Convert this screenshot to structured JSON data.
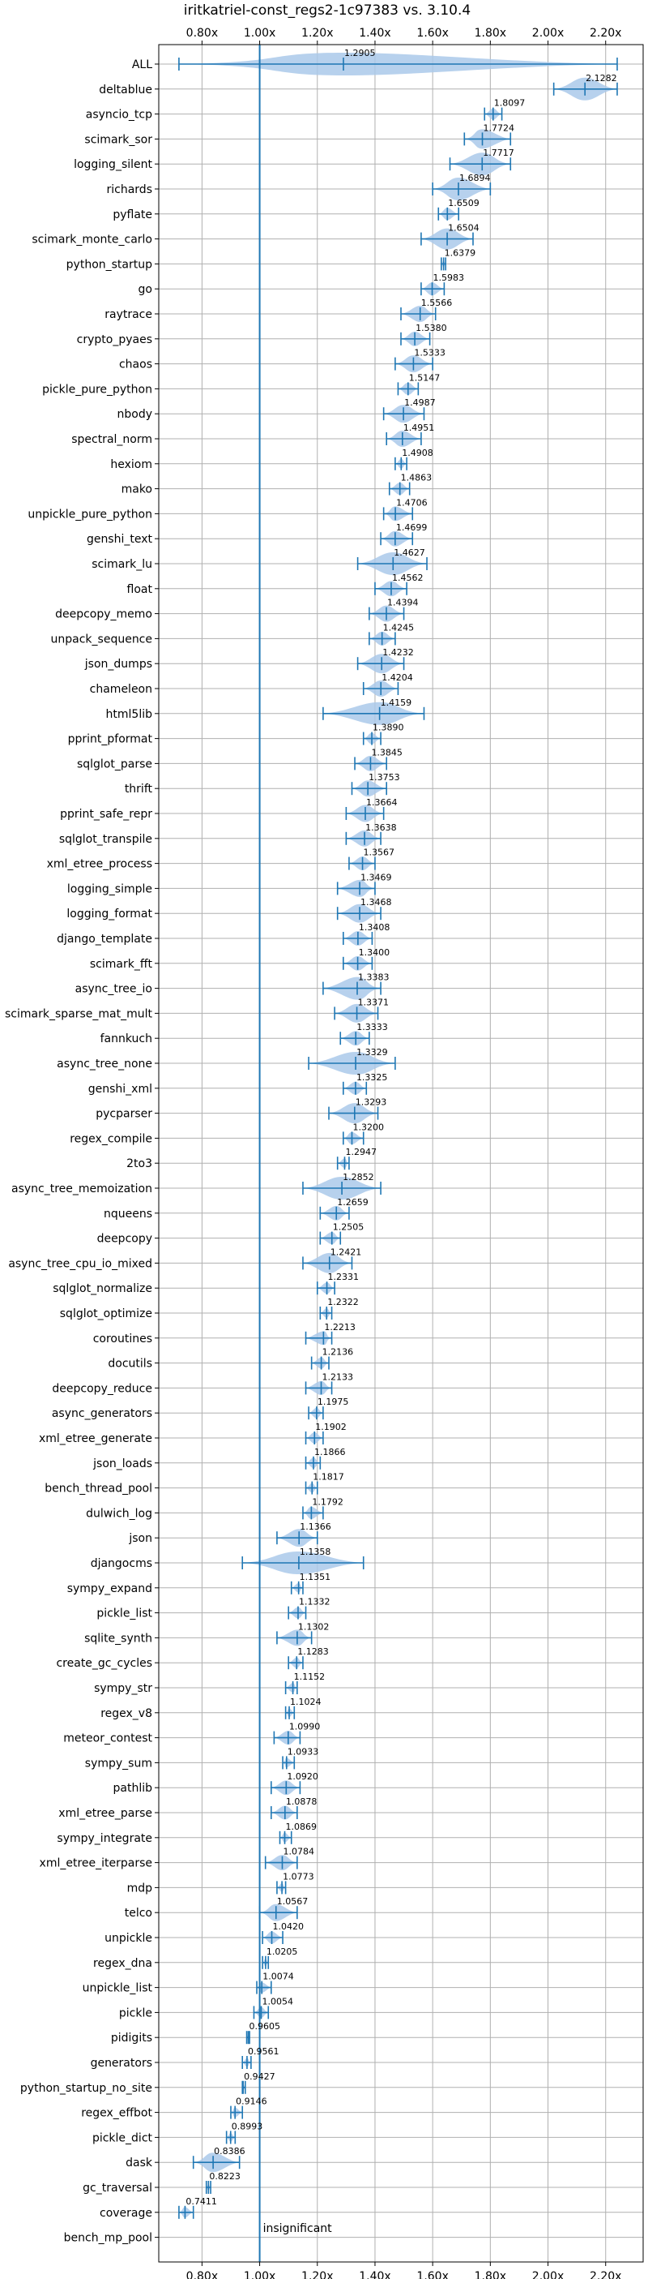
{
  "chart_data": {
    "type": "violin",
    "title": "iritkatriel-const_regs2-1c97383 vs. 3.10.4",
    "xlabel": "",
    "ylabel": "",
    "xlim": [
      0.65,
      2.33
    ],
    "x_ticks": [
      0.8,
      1.0,
      1.2,
      1.4,
      1.6,
      1.8,
      2.0,
      2.2
    ],
    "x_tick_labels": [
      "0.80x",
      "1.00x",
      "1.20x",
      "1.40x",
      "1.60x",
      "1.80x",
      "2.00x",
      "2.20x"
    ],
    "reference_line": 1.0,
    "grid": true,
    "annotation": "insignificant",
    "colors": {
      "violin": "#aac9ea",
      "line": "#1f77b4",
      "grid": "#b0b0b0"
    },
    "categories": [
      "ALL",
      "deltablue",
      "asyncio_tcp",
      "scimark_sor",
      "logging_silent",
      "richards",
      "pyflate",
      "scimark_monte_carlo",
      "python_startup",
      "go",
      "raytrace",
      "crypto_pyaes",
      "chaos",
      "pickle_pure_python",
      "nbody",
      "spectral_norm",
      "hexiom",
      "mako",
      "unpickle_pure_python",
      "genshi_text",
      "scimark_lu",
      "float",
      "deepcopy_memo",
      "unpack_sequence",
      "json_dumps",
      "chameleon",
      "html5lib",
      "pprint_pformat",
      "sqlglot_parse",
      "thrift",
      "pprint_safe_repr",
      "sqlglot_transpile",
      "xml_etree_process",
      "logging_simple",
      "logging_format",
      "django_template",
      "scimark_fft",
      "async_tree_io",
      "scimark_sparse_mat_mult",
      "fannkuch",
      "async_tree_none",
      "genshi_xml",
      "pycparser",
      "regex_compile",
      "2to3",
      "async_tree_memoization",
      "nqueens",
      "deepcopy",
      "async_tree_cpu_io_mixed",
      "sqlglot_normalize",
      "sqlglot_optimize",
      "coroutines",
      "docutils",
      "deepcopy_reduce",
      "async_generators",
      "xml_etree_generate",
      "json_loads",
      "bench_thread_pool",
      "dulwich_log",
      "json",
      "djangocms",
      "sympy_expand",
      "pickle_list",
      "sqlite_synth",
      "create_gc_cycles",
      "sympy_str",
      "regex_v8",
      "meteor_contest",
      "sympy_sum",
      "pathlib",
      "xml_etree_parse",
      "sympy_integrate",
      "xml_etree_iterparse",
      "mdp",
      "telco",
      "unpickle",
      "regex_dna",
      "unpickle_list",
      "pickle",
      "pidigits",
      "generators",
      "python_startup_no_site",
      "regex_effbot",
      "pickle_dict",
      "dask",
      "gc_traversal",
      "coverage",
      "bench_mp_pool"
    ],
    "values": [
      1.2905,
      2.1282,
      1.8097,
      1.7724,
      1.7717,
      1.6894,
      1.6509,
      1.6504,
      1.6379,
      1.5983,
      1.5566,
      1.538,
      1.5333,
      1.5147,
      1.4987,
      1.4951,
      1.4908,
      1.4863,
      1.4706,
      1.4699,
      1.4627,
      1.4562,
      1.4394,
      1.4245,
      1.4232,
      1.4204,
      1.4159,
      1.389,
      1.3845,
      1.3753,
      1.3664,
      1.3638,
      1.3567,
      1.3469,
      1.3468,
      1.3408,
      1.34,
      1.3383,
      1.3371,
      1.3333,
      1.3329,
      1.3325,
      1.3293,
      1.32,
      1.2947,
      1.2852,
      1.2659,
      1.2505,
      1.2421,
      1.2331,
      1.2322,
      1.2213,
      1.2136,
      1.2133,
      1.1975,
      1.1902,
      1.1866,
      1.1817,
      1.1792,
      1.1366,
      1.1358,
      1.1351,
      1.1332,
      1.1302,
      1.1283,
      1.1152,
      1.1024,
      1.099,
      1.0933,
      1.092,
      1.0878,
      1.0869,
      1.0784,
      1.0773,
      1.0567,
      1.042,
      1.0205,
      1.0074,
      1.0054,
      0.9605,
      0.9561,
      0.9427,
      0.9146,
      0.8993,
      0.8386,
      0.8223,
      0.7411,
      null
    ],
    "value_labels": [
      "1.2905",
      "2.1282",
      "1.8097",
      "1.7724",
      "1.7717",
      "1.6894",
      "1.6509",
      "1.6504",
      "1.6379",
      "1.5983",
      "1.5566",
      "1.5380",
      "1.5333",
      "1.5147",
      "1.4987",
      "1.4951",
      "1.4908",
      "1.4863",
      "1.4706",
      "1.4699",
      "1.4627",
      "1.4562",
      "1.4394",
      "1.4245",
      "1.4232",
      "1.4204",
      "1.4159",
      "1.3890",
      "1.3845",
      "1.3753",
      "1.3664",
      "1.3638",
      "1.3567",
      "1.3469",
      "1.3468",
      "1.3408",
      "1.3400",
      "1.3383",
      "1.3371",
      "1.3333",
      "1.3329",
      "1.3325",
      "1.3293",
      "1.3200",
      "1.2947",
      "1.2852",
      "1.2659",
      "1.2505",
      "1.2421",
      "1.2331",
      "1.2322",
      "1.2213",
      "1.2136",
      "1.2133",
      "1.1975",
      "1.1902",
      "1.1866",
      "1.1817",
      "1.1792",
      "1.1366",
      "1.1358",
      "1.1351",
      "1.1332",
      "1.1302",
      "1.1283",
      "1.1152",
      "1.1024",
      "1.0990",
      "1.0933",
      "1.0920",
      "1.0878",
      "1.0869",
      "1.0784",
      "1.0773",
      "1.0567",
      "1.0420",
      "1.0205",
      "1.0074",
      "1.0054",
      "0.9605",
      "0.9561",
      "0.9427",
      "0.9146",
      "0.8993",
      "0.8386",
      "0.8223",
      "0.7411",
      ""
    ],
    "ranges": [
      [
        0.72,
        2.24
      ],
      [
        2.02,
        2.24
      ],
      [
        1.78,
        1.84
      ],
      [
        1.71,
        1.87
      ],
      [
        1.66,
        1.87
      ],
      [
        1.6,
        1.8
      ],
      [
        1.62,
        1.69
      ],
      [
        1.56,
        1.74
      ],
      [
        1.63,
        1.645
      ],
      [
        1.56,
        1.64
      ],
      [
        1.49,
        1.61
      ],
      [
        1.49,
        1.59
      ],
      [
        1.47,
        1.6
      ],
      [
        1.48,
        1.55
      ],
      [
        1.43,
        1.57
      ],
      [
        1.44,
        1.56
      ],
      [
        1.47,
        1.51
      ],
      [
        1.45,
        1.52
      ],
      [
        1.43,
        1.53
      ],
      [
        1.42,
        1.53
      ],
      [
        1.34,
        1.58
      ],
      [
        1.4,
        1.51
      ],
      [
        1.38,
        1.5
      ],
      [
        1.38,
        1.47
      ],
      [
        1.34,
        1.5
      ],
      [
        1.36,
        1.48
      ],
      [
        1.22,
        1.57
      ],
      [
        1.36,
        1.42
      ],
      [
        1.33,
        1.44
      ],
      [
        1.32,
        1.44
      ],
      [
        1.3,
        1.43
      ],
      [
        1.3,
        1.42
      ],
      [
        1.31,
        1.4
      ],
      [
        1.27,
        1.4
      ],
      [
        1.27,
        1.42
      ],
      [
        1.29,
        1.39
      ],
      [
        1.29,
        1.39
      ],
      [
        1.22,
        1.42
      ],
      [
        1.26,
        1.41
      ],
      [
        1.28,
        1.38
      ],
      [
        1.17,
        1.47
      ],
      [
        1.29,
        1.37
      ],
      [
        1.24,
        1.41
      ],
      [
        1.29,
        1.36
      ],
      [
        1.27,
        1.31
      ],
      [
        1.15,
        1.42
      ],
      [
        1.21,
        1.31
      ],
      [
        1.21,
        1.28
      ],
      [
        1.15,
        1.32
      ],
      [
        1.2,
        1.26
      ],
      [
        1.21,
        1.25
      ],
      [
        1.16,
        1.25
      ],
      [
        1.18,
        1.24
      ],
      [
        1.16,
        1.25
      ],
      [
        1.17,
        1.22
      ],
      [
        1.16,
        1.22
      ],
      [
        1.16,
        1.21
      ],
      [
        1.16,
        1.2
      ],
      [
        1.15,
        1.22
      ],
      [
        1.06,
        1.2
      ],
      [
        0.94,
        1.36
      ],
      [
        1.11,
        1.15
      ],
      [
        1.1,
        1.16
      ],
      [
        1.06,
        1.18
      ],
      [
        1.1,
        1.15
      ],
      [
        1.09,
        1.13
      ],
      [
        1.09,
        1.12
      ],
      [
        1.05,
        1.14
      ],
      [
        1.08,
        1.12
      ],
      [
        1.04,
        1.14
      ],
      [
        1.04,
        1.13
      ],
      [
        1.07,
        1.11
      ],
      [
        1.02,
        1.13
      ],
      [
        1.06,
        1.09
      ],
      [
        1.0,
        1.13
      ],
      [
        1.01,
        1.08
      ],
      [
        1.01,
        1.03
      ],
      [
        0.99,
        1.04
      ],
      [
        0.98,
        1.03
      ],
      [
        0.955,
        0.965
      ],
      [
        0.94,
        0.97
      ],
      [
        0.94,
        0.95
      ],
      [
        0.9,
        0.94
      ],
      [
        0.885,
        0.915
      ],
      [
        0.77,
        0.93
      ],
      [
        0.815,
        0.83
      ],
      [
        0.72,
        0.77
      ],
      [
        0,
        0
      ]
    ]
  }
}
